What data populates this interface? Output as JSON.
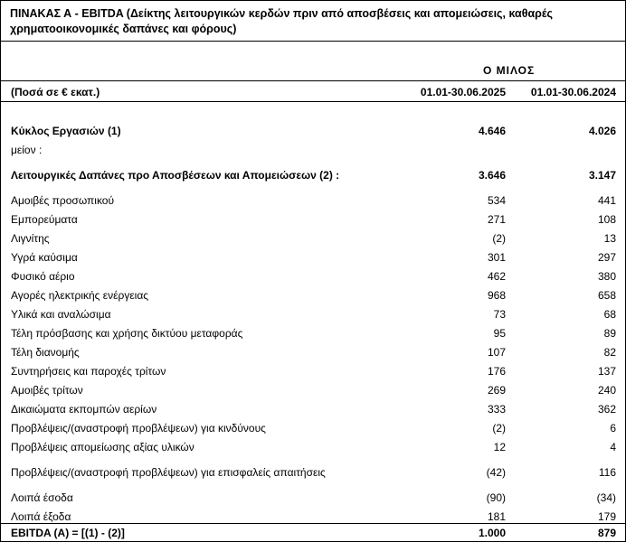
{
  "title": "ΠΙΝΑΚΑΣ Α - EBITDA (Δείκτης λειτουργικών κερδών πριν από αποσβέσεις και απομειώσεις, καθαρές χρηματοοικονομικές δαπάνες και  φόρους)",
  "group_label": "Ο ΜΙΛΟΣ",
  "header": {
    "amounts_label": "(Ποσά σε € εκατ.)",
    "col1": "01.01-30.06.2025",
    "col2": "01.01-30.06.2024"
  },
  "rows": [
    {
      "label": "Κύκλος Εργασιών (1)",
      "v1": "4.646",
      "v2": "4.026"
    },
    {
      "label": "μείον :",
      "v1": "",
      "v2": ""
    },
    {
      "label": "Λειτουργικές Δαπάνες προ Αποσβέσεων και Απομειώσεων (2) :",
      "v1": "3.646",
      "v2": "3.147"
    },
    {
      "label": "Αμοιβές προσωπικού",
      "v1": "534",
      "v2": "441"
    },
    {
      "label": "Εμπορεύματα",
      "v1": "271",
      "v2": "108"
    },
    {
      "label": "Λιγνίτης",
      "v1": "(2)",
      "v2": "13"
    },
    {
      "label": "Υγρά καύσιμα",
      "v1": "301",
      "v2": "297"
    },
    {
      "label": "Φυσικό αέριο",
      "v1": "462",
      "v2": "380"
    },
    {
      "label": "Αγορές ηλεκτρικής ενέργειας",
      "v1": "968",
      "v2": "658"
    },
    {
      "label": "Υλικά και αναλώσιμα",
      "v1": "73",
      "v2": "68"
    },
    {
      "label": "Τέλη πρόσβασης και χρήσης δικτύου μεταφοράς",
      "v1": "95",
      "v2": "89"
    },
    {
      "label": "Τέλη διανομής",
      "v1": "107",
      "v2": "82"
    },
    {
      "label": "Συντηρήσεις και παροχές τρίτων",
      "v1": "176",
      "v2": "137"
    },
    {
      "label": "Αμοιβές τρίτων",
      "v1": "269",
      "v2": "240"
    },
    {
      "label": "Δικαιώματα εκπομπών αερίων",
      "v1": "333",
      "v2": "362"
    },
    {
      "label": "Προβλέψεις/(αναστροφή προβλέψεων) για κινδύνους",
      "v1": "(2)",
      "v2": "6"
    },
    {
      "label": "Προβλέψεις απομείωσης αξίας υλικών",
      "v1": "12",
      "v2": "4"
    },
    {
      "label": "Προβλέψεις/(αναστροφή προβλέψεων) για επισφαλείς απαιτήσεις",
      "v1": "(42)",
      "v2": "116"
    },
    {
      "label": "Λοιπά έσοδα",
      "v1": "(90)",
      "v2": "(34)"
    },
    {
      "label": "Λοιπά έξοδα",
      "v1": "181",
      "v2": "179"
    }
  ],
  "total": {
    "label": "EBITDA (A) = [(1) - (2)]",
    "v1": "1.000",
    "v2": "879"
  }
}
